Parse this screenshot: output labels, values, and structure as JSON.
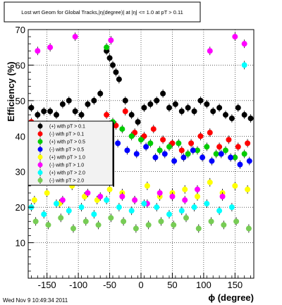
{
  "chart_data": {
    "type": "scatter",
    "title": "Lost wrt Geom for Global Tracks,|η(degree)| at |η| <= 1.0 at pT > 0.11",
    "xlabel": "ϕ (degree)",
    "ylabel": "Efficiency (%)",
    "xlim": [
      -180,
      180
    ],
    "ylim": [
      0,
      70
    ],
    "xticks": [
      -150,
      -100,
      -50,
      0,
      50,
      100,
      150
    ],
    "yticks": [
      10,
      20,
      30,
      40,
      50,
      60,
      70
    ],
    "grid": true,
    "legend_position": "left-middle",
    "timestamp": "Wed Nov  9 10:49:34 2011",
    "series": [
      {
        "name": "(+) with pT > 0.1",
        "color": "#000000",
        "x": [
          -175,
          -165,
          -155,
          -145,
          -135,
          -125,
          -115,
          -105,
          -95,
          -85,
          -75,
          -65,
          -55,
          -50,
          -45,
          -40,
          -35,
          -25,
          -15,
          -5,
          5,
          15,
          25,
          35,
          45,
          55,
          65,
          75,
          85,
          95,
          105,
          115,
          125,
          135,
          145,
          155,
          165,
          175
        ],
        "y": [
          48,
          46,
          47,
          47,
          46,
          49,
          50,
          47,
          46,
          49,
          50,
          52,
          64,
          62,
          60,
          58,
          56,
          50,
          46,
          44,
          48,
          49,
          50,
          52,
          48,
          49,
          47,
          48,
          47,
          50,
          49,
          47,
          48,
          46,
          45,
          48,
          46,
          45
        ]
      },
      {
        "name": "(-) with pT > 0.1",
        "color": "#ff0000",
        "x": [
          -175,
          -160,
          -145,
          -130,
          -115,
          -100,
          -85,
          -70,
          -55,
          -40,
          -25,
          -10,
          5,
          20,
          35,
          50,
          65,
          80,
          95,
          110,
          125,
          140,
          155,
          170
        ],
        "y": [
          44,
          40,
          39,
          42,
          41,
          43,
          40,
          38,
          46,
          43,
          47,
          41,
          40,
          42,
          39,
          38,
          36,
          38,
          40,
          41,
          37,
          39,
          37,
          38
        ]
      },
      {
        "name": "(+) with pT > 0.5",
        "color": "#00cc00",
        "x": [
          -170,
          -155,
          -140,
          -125,
          -110,
          -95,
          -80,
          -65,
          -55,
          -45,
          -30,
          -15,
          0,
          15,
          30,
          45,
          60,
          75,
          90,
          105,
          120,
          135,
          150,
          165
        ],
        "y": [
          38,
          40,
          36,
          38,
          37,
          39,
          40,
          38,
          65,
          44,
          42,
          40,
          39,
          38,
          36,
          37,
          38,
          35,
          36,
          37,
          35,
          36,
          34,
          35
        ]
      },
      {
        "name": "(-) with pT > 0.5",
        "color": "#0000ff",
        "x": [
          -172,
          -157,
          -142,
          -127,
          -112,
          -97,
          -82,
          -67,
          -52,
          -37,
          -22,
          -7,
          8,
          23,
          38,
          53,
          68,
          83,
          98,
          113,
          128,
          143,
          158,
          173
        ],
        "y": [
          34,
          35,
          32,
          33,
          34,
          36,
          35,
          33,
          40,
          38,
          36,
          35,
          37,
          34,
          35,
          33,
          34,
          36,
          34,
          33,
          35,
          34,
          32,
          33
        ]
      },
      {
        "name": "(+) with pT > 1.0",
        "color": "#ffff00",
        "x": [
          -170,
          -150,
          -130,
          -110,
          -90,
          -70,
          -50,
          -30,
          -10,
          10,
          30,
          50,
          70,
          90,
          110,
          130,
          150,
          170
        ],
        "y": [
          22,
          24,
          21,
          26,
          23,
          22,
          25,
          24,
          22,
          26,
          23,
          24,
          25,
          23,
          27,
          24,
          26,
          25
        ]
      },
      {
        "name": "(-) with pT > 1.0",
        "color": "#ff00ff",
        "x": [
          -165,
          -145,
          -125,
          -105,
          -85,
          -65,
          -48,
          -30,
          -10,
          10,
          30,
          50,
          70,
          90,
          110,
          130,
          150,
          165
        ],
        "y": [
          64,
          65,
          22,
          68,
          24,
          23,
          67,
          23,
          22,
          21,
          24,
          23,
          22,
          25,
          64,
          23,
          68,
          66
        ]
      },
      {
        "name": "(+) with pT > 2.0",
        "color": "#00ffff",
        "x": [
          -175,
          -155,
          -135,
          -115,
          -95,
          -75,
          -55,
          -35,
          -15,
          5,
          25,
          45,
          65,
          85,
          105,
          125,
          145,
          165
        ],
        "y": [
          20,
          18,
          21,
          19,
          20,
          18,
          22,
          20,
          19,
          21,
          20,
          18,
          19,
          20,
          21,
          19,
          20,
          60
        ]
      },
      {
        "name": "(-) with pT > 2.0",
        "color": "#77cc55",
        "x": [
          -168,
          -148,
          -128,
          -108,
          -88,
          -68,
          -48,
          -28,
          -8,
          12,
          32,
          52,
          72,
          92,
          112,
          132,
          152,
          172
        ],
        "y": [
          16,
          15,
          17,
          14,
          16,
          15,
          17,
          16,
          14,
          15,
          16,
          15,
          17,
          14,
          16,
          15,
          16,
          14
        ]
      }
    ]
  }
}
